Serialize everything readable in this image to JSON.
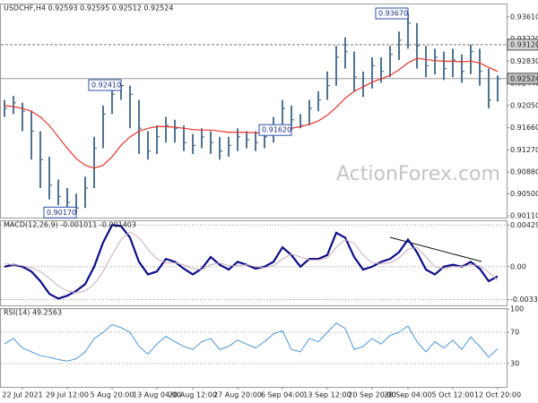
{
  "chart_data": [
    {
      "type": "ohlc",
      "title": "USDCHF,H4  0.92593 0.92595 0.92512 0.92524",
      "categories": [
        null,
        null,
        "22 Jul 2021",
        null,
        null,
        null,
        null,
        "29 Jul 12:00",
        null,
        null,
        null,
        null,
        "5 Aug 20:00",
        null,
        null,
        null,
        null,
        "13 Aug 04:00",
        null,
        null,
        null,
        "20 Aug 12:00",
        null,
        null,
        null,
        null,
        "27 Aug 20:00",
        null,
        null,
        null,
        null,
        "6 Sep 04:00",
        null,
        null,
        null,
        null,
        "13 Sep 12:00",
        null,
        null,
        null,
        null,
        "20 Sep 20:00",
        null,
        null,
        null,
        "28 Sep 04:00",
        null,
        null,
        null,
        null,
        "5 Oct 12:00",
        null,
        null,
        null,
        null,
        "12 Oct 20:00"
      ],
      "high": [
        0.9215,
        0.9222,
        0.921,
        0.9195,
        0.916,
        0.9115,
        0.9075,
        0.906,
        0.905,
        0.908,
        0.915,
        0.9205,
        0.9238,
        0.9241,
        0.924,
        0.9215,
        0.916,
        0.917,
        0.9185,
        0.918,
        0.917,
        0.9155,
        0.9165,
        0.916,
        0.915,
        0.915,
        0.9165,
        0.916,
        0.916,
        0.9165,
        0.9185,
        0.9215,
        0.9205,
        0.919,
        0.9215,
        0.923,
        0.9265,
        0.931,
        0.9325,
        0.93,
        0.9265,
        0.929,
        0.929,
        0.931,
        0.9335,
        0.9367,
        0.935,
        0.931,
        0.9305,
        0.93,
        0.9305,
        0.9295,
        0.9312,
        0.9305,
        0.927,
        0.9258
      ],
      "low": [
        0.9185,
        0.919,
        0.916,
        0.911,
        0.906,
        0.904,
        0.903,
        0.9022,
        0.9017,
        0.9025,
        0.906,
        0.913,
        0.919,
        0.9215,
        0.9165,
        0.912,
        0.911,
        0.912,
        0.914,
        0.914,
        0.9125,
        0.912,
        0.913,
        0.912,
        0.911,
        0.9115,
        0.9125,
        0.913,
        0.9125,
        0.913,
        0.914,
        0.9165,
        0.9162,
        0.9165,
        0.917,
        0.9195,
        0.9215,
        0.924,
        0.927,
        0.923,
        0.922,
        0.9235,
        0.9245,
        0.9255,
        0.9285,
        0.9305,
        0.927,
        0.9255,
        0.926,
        0.925,
        0.9255,
        0.9245,
        0.926,
        0.924,
        0.92,
        0.9212
      ],
      "close": [
        0.92,
        0.921,
        0.9195,
        0.916,
        0.911,
        0.9065,
        0.9045,
        0.9035,
        0.9025,
        0.906,
        0.913,
        0.919,
        0.9225,
        0.924,
        0.9225,
        0.9165,
        0.9125,
        0.915,
        0.917,
        0.9165,
        0.914,
        0.9135,
        0.915,
        0.914,
        0.9125,
        0.9135,
        0.915,
        0.9145,
        0.914,
        0.915,
        0.917,
        0.92,
        0.918,
        0.917,
        0.92,
        0.9215,
        0.924,
        0.929,
        0.93,
        0.9255,
        0.924,
        0.9275,
        0.9265,
        0.9295,
        0.932,
        0.935,
        0.931,
        0.9275,
        0.929,
        0.927,
        0.9285,
        0.9265,
        0.93,
        0.9265,
        0.9215,
        0.9252
      ],
      "color": "#4f7391",
      "ma": {
        "color": "#e8342c",
        "values": [
          0.9205,
          0.9203,
          0.92,
          0.9195,
          0.9185,
          0.917,
          0.915,
          0.913,
          0.9112,
          0.91,
          0.9095,
          0.91,
          0.9115,
          0.9135,
          0.915,
          0.916,
          0.9165,
          0.9168,
          0.9168,
          0.9167,
          0.9165,
          0.9163,
          0.9162,
          0.9162,
          0.916,
          0.9158,
          0.9158,
          0.9158,
          0.9157,
          0.9156,
          0.9157,
          0.916,
          0.9165,
          0.9168,
          0.9172,
          0.9178,
          0.9188,
          0.9202,
          0.9218,
          0.923,
          0.9238,
          0.9246,
          0.9252,
          0.9258,
          0.9268,
          0.928,
          0.9288,
          0.9286,
          0.9284,
          0.9283,
          0.9283,
          0.9282,
          0.9283,
          0.928,
          0.9272,
          0.9265
        ]
      },
      "ylim": [
        0.9008,
        0.9378
      ],
      "yticks": [
        {
          "value": 0.9361,
          "label": "0.93610"
        },
        {
          "value": 0.9322,
          "label": "0.93220"
        },
        {
          "value": 0.9283,
          "label": "0.92830"
        },
        {
          "value": 0.9244,
          "label": "0.92440"
        },
        {
          "value": 0.9205,
          "label": "0.92050"
        },
        {
          "value": 0.9166,
          "label": "0.91660"
        },
        {
          "value": 0.9127,
          "label": "0.91270"
        },
        {
          "value": 0.9088,
          "label": "0.90880"
        },
        {
          "value": 0.905,
          "label": "0.90500"
        },
        {
          "value": 0.9011,
          "label": "0.90110"
        }
      ],
      "hline": {
        "value": 0.9312,
        "label": "0.93120"
      },
      "last_price": {
        "value": 0.92524,
        "label": "0.92524"
      },
      "annotations": [
        {
          "value": 0.9367,
          "label": "0.93670"
        },
        {
          "value": 0.9241,
          "label": "0.92410"
        },
        {
          "value": 0.9017,
          "label": "0.90170"
        },
        {
          "value": 0.9162,
          "label": "0.91620"
        }
      ],
      "watermark": "ActionForex.com"
    },
    {
      "type": "line",
      "title": "MACD(12,26,9) -0.001011 -0.001403",
      "series": [
        {
          "color": "#0d0d8a",
          "values": [
            0,
            0.0002,
            0,
            -0.0005,
            -0.0015,
            -0.0028,
            -0.0033,
            -0.003,
            -0.0025,
            -0.0018,
            0,
            0.0025,
            0.0043,
            0.0042,
            0.003,
            0.0005,
            -0.0008,
            -0.0005,
            0.0008,
            0.0005,
            -0.0002,
            -0.0008,
            -0.0002,
            0.001,
            0.0002,
            -0.0003,
            0.0005,
            0.0002,
            -0.0002,
            0,
            0.0005,
            0.002,
            0.0012,
            0,
            0.0008,
            0.0008,
            0.0012,
            0.0035,
            0.003,
            0.001,
            -0.0003,
            0,
            0.0005,
            0.0008,
            0.0015,
            0.0028,
            0.0015,
            -0.0003,
            -0.0008,
            0,
            0.0002,
            0,
            0.0005,
            -0.0002,
            -0.0015,
            -0.001
          ]
        },
        {
          "color": "#c9a9b8",
          "values": [
            0.0003,
            0.0002,
            0.0001,
            -0.0001,
            -0.0005,
            -0.0012,
            -0.002,
            -0.0025,
            -0.0027,
            -0.0025,
            -0.0018,
            -0.0005,
            0.0012,
            0.0028,
            0.0036,
            0.003,
            0.0018,
            0.0008,
            0.0004,
            0.0004,
            0.0002,
            -0.0002,
            -0.0003,
            0.0002,
            0.0004,
            0.0001,
            0.0001,
            0.0002,
            0,
            -0.0001,
            0.0001,
            0.0008,
            0.0013,
            0.001,
            0.0007,
            0.0007,
            0.0009,
            0.002,
            0.0028,
            0.0024,
            0.0012,
            0.0004,
            0.0003,
            0.0004,
            0.0009,
            0.0018,
            0.002,
            0.001,
            0,
            -0.0002,
            0,
            0,
            0.0002,
            0.0001,
            -0.0006,
            -0.0014
          ]
        }
      ],
      "ylim": [
        -0.004,
        0.0047
      ],
      "yticks": [
        0.004295,
        {
          "value": 0,
          "label": "0.00"
        },
        -0.003396
      ],
      "grid": true
    },
    {
      "type": "line",
      "title": "RSI(14) 49.2563",
      "series": [
        {
          "color": "#4b95d6",
          "values": [
            55,
            62,
            50,
            45,
            40,
            38,
            35,
            33,
            36,
            45,
            62,
            70,
            80,
            76,
            70,
            52,
            42,
            55,
            65,
            58,
            52,
            48,
            58,
            62,
            48,
            52,
            60,
            55,
            50,
            58,
            68,
            72,
            48,
            45,
            62,
            58,
            70,
            82,
            75,
            48,
            52,
            62,
            55,
            66,
            70,
            78,
            58,
            45,
            58,
            50,
            60,
            48,
            64,
            52,
            38,
            49
          ]
        }
      ],
      "ylim": [
        0,
        100
      ],
      "yticks": [
        100,
        70,
        30
      ],
      "grid": true
    }
  ]
}
